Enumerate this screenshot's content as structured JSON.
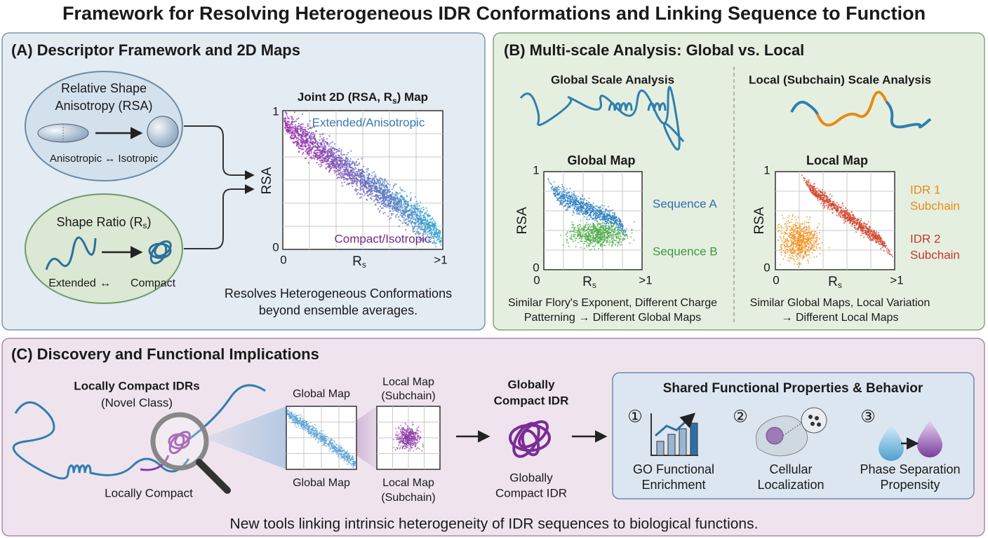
{
  "title": "Framework for Resolving Heterogeneous IDR Conformations and Linking Sequence to Function",
  "panel_a": {
    "heading": "(A) Descriptor Framework and 2D Maps",
    "rsa_box": {
      "lines": [
        "Relative Shape",
        "Anisotropy (RSA)"
      ],
      "caption": "Anisotropic ↔ Isotropic"
    },
    "rs_box": {
      "label": [
        "Shape Ratio (R",
        "s",
        ")"
      ],
      "left": "Extended",
      "arrow": "↔",
      "right": "Compact"
    },
    "map": {
      "title": [
        "Joint 2D (RSA, R",
        "s",
        ") Map"
      ],
      "y_label": "RSA",
      "x_label": [
        "R",
        "s"
      ],
      "y_ticks": [
        "1",
        "0"
      ],
      "x_ticks": [
        "0",
        ">1"
      ],
      "annotations": [
        "Extended/Anisotropic",
        "Compact/Isotropic"
      ]
    },
    "caption": [
      "Resolves Heterogeneous Conformations",
      "beyond ensemble averages."
    ]
  },
  "panel_b": {
    "heading": "(B) Multi-scale Analysis: Global vs. Local",
    "global": {
      "title": "Global Scale Analysis",
      "map_title": "Global Map",
      "y_label": "RSA",
      "x_label": [
        "R",
        "s"
      ],
      "y_ticks": [
        "1",
        "0"
      ],
      "x_ticks": [
        "0",
        ">1"
      ],
      "legend": [
        "Sequence A",
        "Sequence B"
      ],
      "caption": [
        "Similar Flory's Exponent, Different Charge",
        "Patterning → Different Global Maps"
      ]
    },
    "local": {
      "title": "Local (Subchain) Scale Analysis",
      "map_title": "Local Map",
      "y_label": "RSA",
      "x_label": [
        "R",
        "s"
      ],
      "y_ticks": [
        "1",
        "0"
      ],
      "x_ticks": [
        "0",
        ">1"
      ],
      "legend": [
        [
          "IDR 1",
          "Subchain"
        ],
        [
          "IDR 2",
          "Subchain"
        ]
      ],
      "caption": [
        "Similar Global Maps, Local Variation",
        "→ Different Local Maps"
      ]
    }
  },
  "panel_c": {
    "heading": "(C) Discovery and Functional Implications",
    "idr_title": [
      "Locally Compact IDRs",
      "(Novel Class)"
    ],
    "idr_label": "Locally Compact",
    "global_map": {
      "top": "Global Map",
      "bottom": "Global Map"
    },
    "local_map": {
      "top": [
        "Local Map",
        "(Subchain)"
      ],
      "bottom": [
        "Local Map",
        "(Subchain)"
      ]
    },
    "globally_compact": {
      "title": [
        "Globally",
        "Compact IDR"
      ],
      "label": [
        "Globally",
        "Compact IDR"
      ]
    },
    "properties": {
      "title": "Shared Functional Properties & Behavior",
      "items": [
        {
          "number": "①",
          "label": [
            "GO Functional",
            "Enrichment"
          ]
        },
        {
          "number": "②",
          "label": [
            "Cellular",
            "Localization"
          ]
        },
        {
          "number": "③",
          "label": [
            "Phase Separation",
            "Propensity"
          ]
        }
      ]
    },
    "footer": "New tools linking intrinsic heterogeneity of IDR sequences to biological functions."
  }
}
